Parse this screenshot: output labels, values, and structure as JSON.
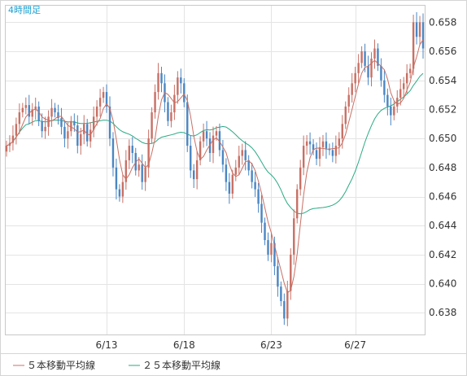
{
  "chart_data": {
    "type": "candlestick",
    "title": "4時間足",
    "y_ticks": [
      "0.658",
      "0.656",
      "0.654",
      "0.652",
      "0.650",
      "0.648",
      "0.646",
      "0.644",
      "0.642",
      "0.640",
      "0.638"
    ],
    "y_tick_values": [
      0.658,
      0.656,
      0.654,
      0.652,
      0.65,
      0.648,
      0.646,
      0.644,
      0.642,
      0.64,
      0.638
    ],
    "ylim": [
      0.6365,
      0.6592
    ],
    "x_ticks": [
      {
        "label": "6/13",
        "index": 31
      },
      {
        "label": "6/18",
        "index": 55
      },
      {
        "label": "6/23",
        "index": 82
      },
      {
        "label": "6/27",
        "index": 108
      }
    ],
    "grid": true,
    "colors": {
      "up": "#c87065",
      "down": "#4a86c3",
      "ma5": "#c87065",
      "ma25": "#2aaa84"
    },
    "legend": [
      {
        "name": "５本移動平均線",
        "color": "#c87065"
      },
      {
        "name": "２５本移動平均線",
        "color": "#2aaa84"
      }
    ],
    "closes": [
      0.6495,
      0.6497,
      0.6502,
      0.651,
      0.6518,
      0.6521,
      0.6523,
      0.6515,
      0.652,
      0.6522,
      0.6512,
      0.6505,
      0.6508,
      0.6515,
      0.6521,
      0.6518,
      0.6514,
      0.6508,
      0.65,
      0.6505,
      0.6512,
      0.6509,
      0.6495,
      0.6503,
      0.651,
      0.6498,
      0.6506,
      0.6515,
      0.6522,
      0.6528,
      0.6532,
      0.6522,
      0.65,
      0.648,
      0.6465,
      0.646,
      0.647,
      0.6485,
      0.6495,
      0.649,
      0.6478,
      0.6482,
      0.647,
      0.648,
      0.65,
      0.6518,
      0.6532,
      0.6545,
      0.6538,
      0.6525,
      0.6512,
      0.6518,
      0.653,
      0.6542,
      0.6538,
      0.6525,
      0.6495,
      0.6478,
      0.6472,
      0.6485,
      0.6498,
      0.6505,
      0.65,
      0.649,
      0.6502,
      0.6505,
      0.6492,
      0.6482,
      0.647,
      0.6462,
      0.6475,
      0.648,
      0.6488,
      0.6492,
      0.6485,
      0.6478,
      0.647,
      0.6465,
      0.6455,
      0.6442,
      0.643,
      0.642,
      0.6428,
      0.6412,
      0.6398,
      0.6388,
      0.6376,
      0.6395,
      0.642,
      0.6445,
      0.6465,
      0.648,
      0.6495,
      0.6498,
      0.6496,
      0.6492,
      0.6486,
      0.6494,
      0.6498,
      0.6493,
      0.6492,
      0.6488,
      0.6495,
      0.65,
      0.651,
      0.6522,
      0.653,
      0.6538,
      0.6545,
      0.6552,
      0.656,
      0.655,
      0.6542,
      0.6555,
      0.6562,
      0.655,
      0.654,
      0.653,
      0.6522,
      0.6516,
      0.6522,
      0.6528,
      0.6534,
      0.6538,
      0.6545,
      0.6548,
      0.658,
      0.657,
      0.658,
      0.6562
    ]
  }
}
